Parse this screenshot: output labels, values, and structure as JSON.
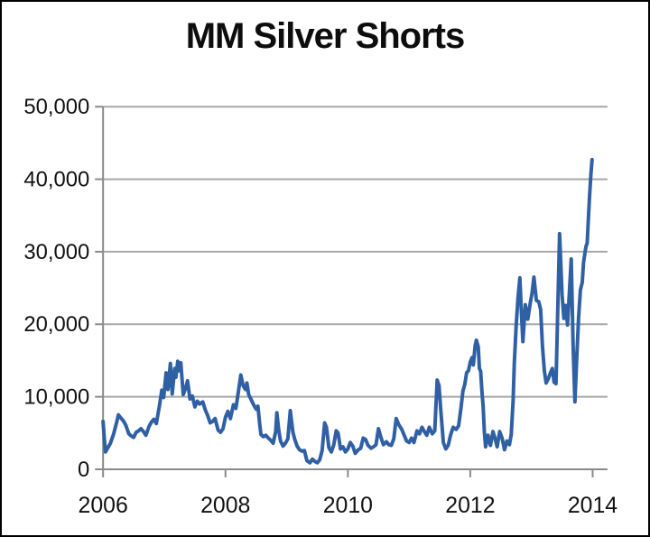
{
  "chart_data": {
    "type": "line",
    "title": "MM Silver Shorts",
    "xlabel": "",
    "ylabel": "",
    "legend": "none",
    "grid": "horizontal",
    "xlim": [
      2006,
      2014.25
    ],
    "ylim": [
      0,
      50000
    ],
    "x_ticks": [
      {
        "label": "2006",
        "value": 2006
      },
      {
        "label": "2008",
        "value": 2008
      },
      {
        "label": "2010",
        "value": 2010
      },
      {
        "label": "2012",
        "value": 2012
      },
      {
        "label": "2014",
        "value": 2014
      }
    ],
    "y_ticks": [
      {
        "label": "0",
        "value": 0
      },
      {
        "label": "10,000",
        "value": 10000
      },
      {
        "label": "20,000",
        "value": 20000
      },
      {
        "label": "30,000",
        "value": 30000
      },
      {
        "label": "40,000",
        "value": 40000
      },
      {
        "label": "50,000",
        "value": 50000
      }
    ],
    "colors": {
      "line": "#3060a4",
      "grid": "#a8a8a8",
      "axis": "#8a8a8a",
      "text": "#111111",
      "background": "#ffffff",
      "border": "#000000"
    },
    "series": [
      {
        "points": [
          [
            2006.0,
            6600
          ],
          [
            2006.02,
            4200
          ],
          [
            2006.04,
            2400
          ],
          [
            2006.08,
            3000
          ],
          [
            2006.12,
            3600
          ],
          [
            2006.17,
            4800
          ],
          [
            2006.22,
            6400
          ],
          [
            2006.25,
            7500
          ],
          [
            2006.29,
            7100
          ],
          [
            2006.33,
            6700
          ],
          [
            2006.37,
            6100
          ],
          [
            2006.42,
            4900
          ],
          [
            2006.46,
            4600
          ],
          [
            2006.5,
            4400
          ],
          [
            2006.54,
            5100
          ],
          [
            2006.58,
            5300
          ],
          [
            2006.62,
            5600
          ],
          [
            2006.66,
            5200
          ],
          [
            2006.7,
            4700
          ],
          [
            2006.75,
            5900
          ],
          [
            2006.79,
            6500
          ],
          [
            2006.83,
            6900
          ],
          [
            2006.87,
            6300
          ],
          [
            2006.92,
            8700
          ],
          [
            2006.96,
            10900
          ],
          [
            2006.99,
            9900
          ],
          [
            2007.03,
            13300
          ],
          [
            2007.06,
            11000
          ],
          [
            2007.1,
            14600
          ],
          [
            2007.13,
            10400
          ],
          [
            2007.17,
            13900
          ],
          [
            2007.19,
            12700
          ],
          [
            2007.22,
            14900
          ],
          [
            2007.24,
            13600
          ],
          [
            2007.27,
            14700
          ],
          [
            2007.31,
            10300
          ],
          [
            2007.35,
            11200
          ],
          [
            2007.38,
            12200
          ],
          [
            2007.42,
            9700
          ],
          [
            2007.46,
            10100
          ],
          [
            2007.5,
            8600
          ],
          [
            2007.54,
            9400
          ],
          [
            2007.58,
            9000
          ],
          [
            2007.63,
            9300
          ],
          [
            2007.67,
            8200
          ],
          [
            2007.71,
            7400
          ],
          [
            2007.75,
            6400
          ],
          [
            2007.79,
            6600
          ],
          [
            2007.83,
            7000
          ],
          [
            2007.88,
            5400
          ],
          [
            2007.92,
            5100
          ],
          [
            2007.96,
            5600
          ],
          [
            2008.0,
            7200
          ],
          [
            2008.04,
            8000
          ],
          [
            2008.08,
            7000
          ],
          [
            2008.13,
            8900
          ],
          [
            2008.17,
            8400
          ],
          [
            2008.21,
            10600
          ],
          [
            2008.25,
            13000
          ],
          [
            2008.29,
            11500
          ],
          [
            2008.33,
            11000
          ],
          [
            2008.35,
            11900
          ],
          [
            2008.38,
            10300
          ],
          [
            2008.42,
            9600
          ],
          [
            2008.46,
            8900
          ],
          [
            2008.5,
            8300
          ],
          [
            2008.53,
            8700
          ],
          [
            2008.56,
            6200
          ],
          [
            2008.58,
            4800
          ],
          [
            2008.62,
            4500
          ],
          [
            2008.66,
            4700
          ],
          [
            2008.7,
            4300
          ],
          [
            2008.74,
            4000
          ],
          [
            2008.78,
            3600
          ],
          [
            2008.82,
            5200
          ],
          [
            2008.84,
            7800
          ],
          [
            2008.87,
            5400
          ],
          [
            2008.9,
            3900
          ],
          [
            2008.94,
            3200
          ],
          [
            2008.98,
            3600
          ],
          [
            2009.02,
            4200
          ],
          [
            2009.06,
            8100
          ],
          [
            2009.1,
            5200
          ],
          [
            2009.13,
            4200
          ],
          [
            2009.17,
            3200
          ],
          [
            2009.21,
            2700
          ],
          [
            2009.25,
            2500
          ],
          [
            2009.29,
            2600
          ],
          [
            2009.33,
            1200
          ],
          [
            2009.38,
            900
          ],
          [
            2009.42,
            1400
          ],
          [
            2009.46,
            1100
          ],
          [
            2009.5,
            900
          ],
          [
            2009.54,
            1300
          ],
          [
            2009.58,
            2600
          ],
          [
            2009.62,
            6400
          ],
          [
            2009.65,
            5800
          ],
          [
            2009.69,
            3000
          ],
          [
            2009.73,
            2400
          ],
          [
            2009.77,
            3400
          ],
          [
            2009.81,
            5300
          ],
          [
            2009.84,
            5000
          ],
          [
            2009.88,
            2800
          ],
          [
            2009.92,
            3100
          ],
          [
            2009.96,
            2400
          ],
          [
            2010.0,
            2800
          ],
          [
            2010.04,
            3700
          ],
          [
            2010.08,
            3200
          ],
          [
            2010.12,
            2200
          ],
          [
            2010.17,
            2700
          ],
          [
            2010.21,
            2900
          ],
          [
            2010.25,
            4300
          ],
          [
            2010.29,
            4100
          ],
          [
            2010.33,
            3300
          ],
          [
            2010.38,
            2900
          ],
          [
            2010.42,
            3100
          ],
          [
            2010.46,
            3400
          ],
          [
            2010.5,
            5600
          ],
          [
            2010.54,
            4400
          ],
          [
            2010.58,
            3400
          ],
          [
            2010.63,
            3800
          ],
          [
            2010.67,
            3400
          ],
          [
            2010.71,
            3300
          ],
          [
            2010.75,
            4200
          ],
          [
            2010.79,
            7000
          ],
          [
            2010.83,
            6200
          ],
          [
            2010.88,
            5500
          ],
          [
            2010.92,
            4700
          ],
          [
            2010.96,
            3900
          ],
          [
            2011.0,
            3700
          ],
          [
            2011.04,
            4300
          ],
          [
            2011.08,
            3700
          ],
          [
            2011.13,
            5300
          ],
          [
            2011.17,
            4900
          ],
          [
            2011.21,
            5800
          ],
          [
            2011.25,
            5200
          ],
          [
            2011.29,
            4700
          ],
          [
            2011.33,
            5800
          ],
          [
            2011.38,
            4900
          ],
          [
            2011.42,
            5300
          ],
          [
            2011.46,
            12300
          ],
          [
            2011.49,
            11500
          ],
          [
            2011.52,
            8000
          ],
          [
            2011.56,
            3700
          ],
          [
            2011.6,
            2800
          ],
          [
            2011.64,
            3300
          ],
          [
            2011.68,
            4800
          ],
          [
            2011.72,
            5800
          ],
          [
            2011.77,
            5500
          ],
          [
            2011.81,
            6000
          ],
          [
            2011.85,
            8600
          ],
          [
            2011.88,
            10800
          ],
          [
            2011.91,
            11700
          ],
          [
            2011.94,
            13300
          ],
          [
            2011.97,
            13600
          ],
          [
            2012.0,
            14800
          ],
          [
            2012.03,
            15400
          ],
          [
            2012.05,
            14400
          ],
          [
            2012.08,
            17100
          ],
          [
            2012.1,
            17800
          ],
          [
            2012.13,
            16900
          ],
          [
            2012.15,
            13900
          ],
          [
            2012.17,
            13500
          ],
          [
            2012.19,
            10700
          ],
          [
            2012.21,
            8800
          ],
          [
            2012.23,
            5200
          ],
          [
            2012.25,
            3100
          ],
          [
            2012.29,
            4700
          ],
          [
            2012.33,
            3300
          ],
          [
            2012.37,
            5200
          ],
          [
            2012.4,
            4400
          ],
          [
            2012.44,
            3100
          ],
          [
            2012.48,
            5200
          ],
          [
            2012.52,
            4300
          ],
          [
            2012.56,
            2700
          ],
          [
            2012.6,
            3900
          ],
          [
            2012.64,
            3400
          ],
          [
            2012.67,
            4800
          ],
          [
            2012.7,
            9500
          ],
          [
            2012.72,
            14600
          ],
          [
            2012.75,
            19800
          ],
          [
            2012.78,
            23600
          ],
          [
            2012.81,
            26400
          ],
          [
            2012.84,
            20900
          ],
          [
            2012.86,
            17600
          ],
          [
            2012.9,
            22700
          ],
          [
            2012.94,
            20700
          ],
          [
            2012.98,
            22900
          ],
          [
            2013.01,
            24300
          ],
          [
            2013.04,
            26500
          ],
          [
            2013.08,
            23300
          ],
          [
            2013.12,
            23100
          ],
          [
            2013.15,
            22000
          ],
          [
            2013.18,
            17000
          ],
          [
            2013.21,
            13600
          ],
          [
            2013.24,
            11900
          ],
          [
            2013.28,
            12600
          ],
          [
            2013.31,
            13300
          ],
          [
            2013.34,
            13900
          ],
          [
            2013.37,
            12000
          ],
          [
            2013.4,
            11800
          ],
          [
            2013.46,
            32500
          ],
          [
            2013.5,
            24000
          ],
          [
            2013.53,
            20800
          ],
          [
            2013.56,
            22600
          ],
          [
            2013.59,
            19900
          ],
          [
            2013.65,
            29000
          ],
          [
            2013.68,
            17000
          ],
          [
            2013.71,
            9300
          ],
          [
            2013.74,
            15500
          ],
          [
            2013.77,
            20900
          ],
          [
            2013.8,
            24700
          ],
          [
            2013.83,
            25800
          ],
          [
            2013.85,
            28500
          ],
          [
            2013.87,
            29600
          ],
          [
            2013.89,
            30700
          ],
          [
            2013.91,
            31200
          ],
          [
            2013.93,
            34500
          ],
          [
            2013.95,
            37800
          ],
          [
            2013.97,
            40600
          ],
          [
            2013.99,
            42700
          ]
        ]
      }
    ]
  }
}
